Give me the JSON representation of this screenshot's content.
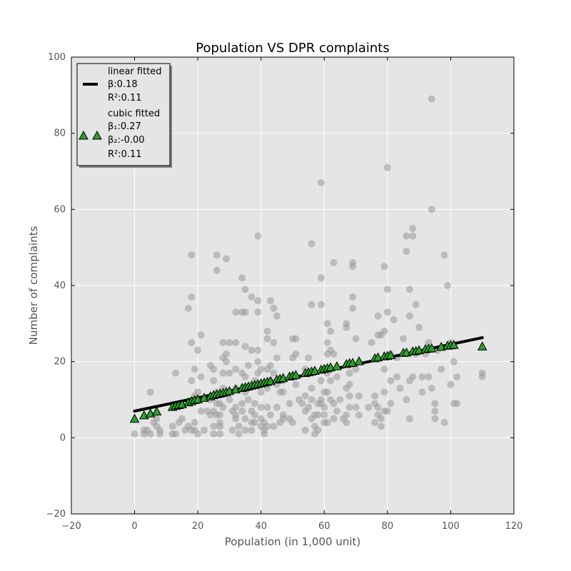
{
  "chart_data": {
    "type": "scatter",
    "title": "Population VS DPR complaints",
    "xlabel": "Population (in 1,000 unit)",
    "ylabel": "Number of complaints",
    "xlim": [
      -20,
      120
    ],
    "ylim": [
      -20,
      100
    ],
    "xticks": [
      -20,
      0,
      20,
      40,
      60,
      80,
      100,
      120
    ],
    "yticks": [
      -20,
      0,
      20,
      40,
      60,
      80,
      100
    ],
    "grid": true,
    "legend": {
      "placement": "top-left",
      "linear_lines": [
        "linear fitted",
        "β:0.18",
        "R²:0.11"
      ],
      "cubic_lines": [
        "cubic fitted",
        "β₁:0.27",
        "β₂:-0.00",
        "R²:0.11"
      ]
    },
    "colors": {
      "observed": "#999999",
      "linear_fit": "#000000",
      "cubic_fit": "#2ca02c",
      "background": "#e5e5e5"
    },
    "linear_fit": {
      "x": [
        0,
        110
      ],
      "y": [
        7,
        26.3
      ]
    },
    "cubic_fit": {
      "x": [
        0,
        3,
        5,
        7,
        12,
        13,
        14,
        15,
        17,
        18,
        19,
        20,
        22,
        24,
        25,
        26,
        27,
        28,
        29,
        30,
        32,
        34,
        35,
        36,
        37,
        38,
        39,
        40,
        41,
        42,
        43,
        45,
        46,
        47,
        49,
        50,
        51,
        54,
        55,
        56,
        57,
        59,
        60,
        61,
        62,
        64,
        67,
        68,
        69,
        71,
        76,
        77,
        79,
        80,
        81,
        85,
        86,
        88,
        89,
        90,
        92,
        93,
        94,
        97,
        99,
        100,
        101,
        110
      ],
      "y": [
        5,
        5.9,
        6.4,
        6.9,
        8.1,
        8.4,
        8.6,
        8.8,
        9.3,
        9.6,
        9.9,
        10.1,
        10.5,
        10.9,
        11.2,
        11.4,
        11.6,
        11.8,
        12,
        12.3,
        12.7,
        13.1,
        13.3,
        13.5,
        13.7,
        13.9,
        14.1,
        14.3,
        14.5,
        14.7,
        14.9,
        15.3,
        15.5,
        15.7,
        16.1,
        16.3,
        16.5,
        17,
        17.2,
        17.4,
        17.6,
        17.9,
        18.1,
        18.3,
        18.5,
        18.8,
        19.4,
        19.6,
        19.7,
        20.1,
        20.9,
        21.1,
        21.4,
        21.5,
        21.7,
        22.3,
        22.4,
        22.7,
        22.8,
        23,
        23.3,
        23.4,
        23.5,
        23.9,
        24.2,
        24.3,
        24.4,
        24
      ]
    },
    "observed_points": [
      [
        0,
        1
      ],
      [
        3,
        1
      ],
      [
        3,
        2
      ],
      [
        4,
        2
      ],
      [
        5,
        1
      ],
      [
        5,
        12
      ],
      [
        6,
        4
      ],
      [
        7,
        3
      ],
      [
        7,
        5
      ],
      [
        8,
        2
      ],
      [
        8,
        1
      ],
      [
        12,
        1
      ],
      [
        12,
        3
      ],
      [
        13,
        1
      ],
      [
        13,
        17
      ],
      [
        14,
        4
      ],
      [
        15,
        5
      ],
      [
        16,
        2
      ],
      [
        17,
        3
      ],
      [
        18,
        2
      ],
      [
        17,
        34
      ],
      [
        18,
        37
      ],
      [
        18,
        48
      ],
      [
        18,
        25
      ],
      [
        18,
        15
      ],
      [
        19,
        11
      ],
      [
        19,
        18
      ],
      [
        19,
        4
      ],
      [
        19,
        2
      ],
      [
        20,
        23
      ],
      [
        20,
        12
      ],
      [
        20,
        1
      ],
      [
        21,
        27
      ],
      [
        21,
        16
      ],
      [
        21,
        7
      ],
      [
        22,
        2
      ],
      [
        23,
        7
      ],
      [
        24,
        19
      ],
      [
        24,
        10
      ],
      [
        24,
        6
      ],
      [
        25,
        15
      ],
      [
        25,
        18
      ],
      [
        25,
        7
      ],
      [
        25,
        3
      ],
      [
        25,
        1
      ],
      [
        26,
        44
      ],
      [
        26,
        48
      ],
      [
        26,
        12
      ],
      [
        26,
        9
      ],
      [
        26,
        6
      ],
      [
        27,
        1
      ],
      [
        27,
        3
      ],
      [
        27,
        4
      ],
      [
        27,
        6
      ],
      [
        27,
        9
      ],
      [
        28,
        25
      ],
      [
        28,
        21
      ],
      [
        28,
        17
      ],
      [
        28,
        13
      ],
      [
        28,
        8
      ],
      [
        29,
        47
      ],
      [
        29,
        22
      ],
      [
        29,
        20
      ],
      [
        30,
        25
      ],
      [
        30,
        17
      ],
      [
        30,
        10
      ],
      [
        31,
        2
      ],
      [
        31,
        7
      ],
      [
        32,
        33
      ],
      [
        32,
        25
      ],
      [
        32,
        18
      ],
      [
        32,
        13
      ],
      [
        32,
        8
      ],
      [
        32,
        6
      ],
      [
        32,
        5
      ],
      [
        33,
        3
      ],
      [
        33,
        1
      ],
      [
        34,
        42
      ],
      [
        34,
        33
      ],
      [
        34,
        17
      ],
      [
        34,
        9
      ],
      [
        34,
        7
      ],
      [
        35,
        39
      ],
      [
        35,
        33
      ],
      [
        35,
        24
      ],
      [
        35,
        16
      ],
      [
        35,
        12
      ],
      [
        35,
        5
      ],
      [
        35,
        2
      ],
      [
        36,
        19
      ],
      [
        36,
        10
      ],
      [
        37,
        37
      ],
      [
        37,
        23
      ],
      [
        37,
        7
      ],
      [
        37,
        4
      ],
      [
        37,
        2
      ],
      [
        38,
        15
      ],
      [
        38,
        9
      ],
      [
        38,
        6
      ],
      [
        38,
        4
      ],
      [
        39,
        53
      ],
      [
        39,
        36
      ],
      [
        39,
        33
      ],
      [
        39,
        23
      ],
      [
        39,
        20
      ],
      [
        39,
        17
      ],
      [
        40,
        18
      ],
      [
        40,
        12
      ],
      [
        40,
        8
      ],
      [
        40,
        5
      ],
      [
        40,
        3
      ],
      [
        41,
        4
      ],
      [
        41,
        2
      ],
      [
        41,
        1
      ],
      [
        42,
        28
      ],
      [
        42,
        26
      ],
      [
        42,
        18
      ],
      [
        42,
        13
      ],
      [
        42,
        8
      ],
      [
        42,
        3
      ],
      [
        43,
        36
      ],
      [
        43,
        19
      ],
      [
        43,
        15
      ],
      [
        43,
        6
      ],
      [
        44,
        34
      ],
      [
        44,
        25
      ],
      [
        44,
        17
      ],
      [
        44,
        3
      ],
      [
        45,
        32
      ],
      [
        45,
        21
      ],
      [
        45,
        14
      ],
      [
        45,
        8
      ],
      [
        46,
        12
      ],
      [
        46,
        4
      ],
      [
        47,
        15
      ],
      [
        47,
        12
      ],
      [
        47,
        6
      ],
      [
        47,
        5
      ],
      [
        49,
        9
      ],
      [
        49,
        5
      ],
      [
        50,
        26
      ],
      [
        50,
        21
      ],
      [
        50,
        16
      ],
      [
        50,
        4
      ],
      [
        51,
        26
      ],
      [
        51,
        22
      ],
      [
        51,
        14
      ],
      [
        52,
        10
      ],
      [
        53,
        9
      ],
      [
        54,
        18
      ],
      [
        54,
        11
      ],
      [
        54,
        7
      ],
      [
        54,
        2
      ],
      [
        55,
        21
      ],
      [
        55,
        8
      ],
      [
        56,
        51
      ],
      [
        56,
        35
      ],
      [
        56,
        13
      ],
      [
        56,
        10
      ],
      [
        56,
        5
      ],
      [
        57,
        6
      ],
      [
        57,
        3
      ],
      [
        57,
        1
      ],
      [
        58,
        9
      ],
      [
        58,
        6
      ],
      [
        58,
        2
      ],
      [
        59,
        67
      ],
      [
        59,
        42
      ],
      [
        59,
        35
      ],
      [
        59,
        15
      ],
      [
        59,
        10
      ],
      [
        59,
        9
      ],
      [
        60,
        18
      ],
      [
        60,
        12
      ],
      [
        60,
        8
      ],
      [
        60,
        6
      ],
      [
        60,
        4
      ],
      [
        61,
        30
      ],
      [
        61,
        25
      ],
      [
        61,
        22
      ],
      [
        61,
        17
      ],
      [
        61,
        12
      ],
      [
        61,
        4
      ],
      [
        62,
        28
      ],
      [
        62,
        23
      ],
      [
        62,
        18
      ],
      [
        62,
        15
      ],
      [
        62,
        10
      ],
      [
        63,
        46
      ],
      [
        63,
        22
      ],
      [
        63,
        9
      ],
      [
        63,
        5
      ],
      [
        64,
        16
      ],
      [
        64,
        7
      ],
      [
        65,
        10
      ],
      [
        66,
        5
      ],
      [
        67,
        30
      ],
      [
        67,
        29
      ],
      [
        67,
        13
      ],
      [
        67,
        6
      ],
      [
        67,
        4
      ],
      [
        68,
        17
      ],
      [
        68,
        14
      ],
      [
        68,
        11
      ],
      [
        68,
        8
      ],
      [
        69,
        46
      ],
      [
        69,
        45
      ],
      [
        69,
        37
      ],
      [
        69,
        34
      ],
      [
        70,
        26
      ],
      [
        70,
        18
      ],
      [
        70,
        8
      ],
      [
        71,
        11
      ],
      [
        71,
        6
      ],
      [
        74,
        8
      ],
      [
        75,
        25
      ],
      [
        76,
        11
      ],
      [
        76,
        9
      ],
      [
        76,
        4
      ],
      [
        77,
        32
      ],
      [
        77,
        27
      ],
      [
        77,
        8
      ],
      [
        77,
        6
      ],
      [
        78,
        27
      ],
      [
        78,
        5
      ],
      [
        78,
        3
      ],
      [
        79,
        45
      ],
      [
        79,
        28
      ],
      [
        79,
        18
      ],
      [
        79,
        12
      ],
      [
        79,
        7
      ],
      [
        80,
        71
      ],
      [
        80,
        39
      ],
      [
        80,
        33
      ],
      [
        80,
        7
      ],
      [
        81,
        22
      ],
      [
        81,
        15
      ],
      [
        81,
        9
      ],
      [
        82,
        31
      ],
      [
        83,
        21
      ],
      [
        83,
        16
      ],
      [
        84,
        13
      ],
      [
        85,
        26
      ],
      [
        86,
        53
      ],
      [
        86,
        49
      ],
      [
        86,
        10
      ],
      [
        87,
        39
      ],
      [
        87,
        32
      ],
      [
        87,
        15
      ],
      [
        87,
        5
      ],
      [
        88,
        55
      ],
      [
        88,
        53
      ],
      [
        88,
        16
      ],
      [
        89,
        35
      ],
      [
        89,
        22
      ],
      [
        90,
        29
      ],
      [
        91,
        16
      ],
      [
        91,
        12
      ],
      [
        92,
        22
      ],
      [
        93,
        25
      ],
      [
        93,
        16
      ],
      [
        94,
        13
      ],
      [
        94,
        89
      ],
      [
        94,
        60
      ],
      [
        95,
        9
      ],
      [
        95,
        7
      ],
      [
        95,
        5
      ],
      [
        96,
        23
      ],
      [
        97,
        18
      ],
      [
        98,
        4
      ],
      [
        98,
        48
      ],
      [
        99,
        40
      ],
      [
        100,
        25
      ],
      [
        100,
        14
      ],
      [
        101,
        20
      ],
      [
        101,
        9
      ],
      [
        102,
        16
      ],
      [
        102,
        9
      ],
      [
        110,
        17
      ],
      [
        110,
        16
      ]
    ]
  }
}
